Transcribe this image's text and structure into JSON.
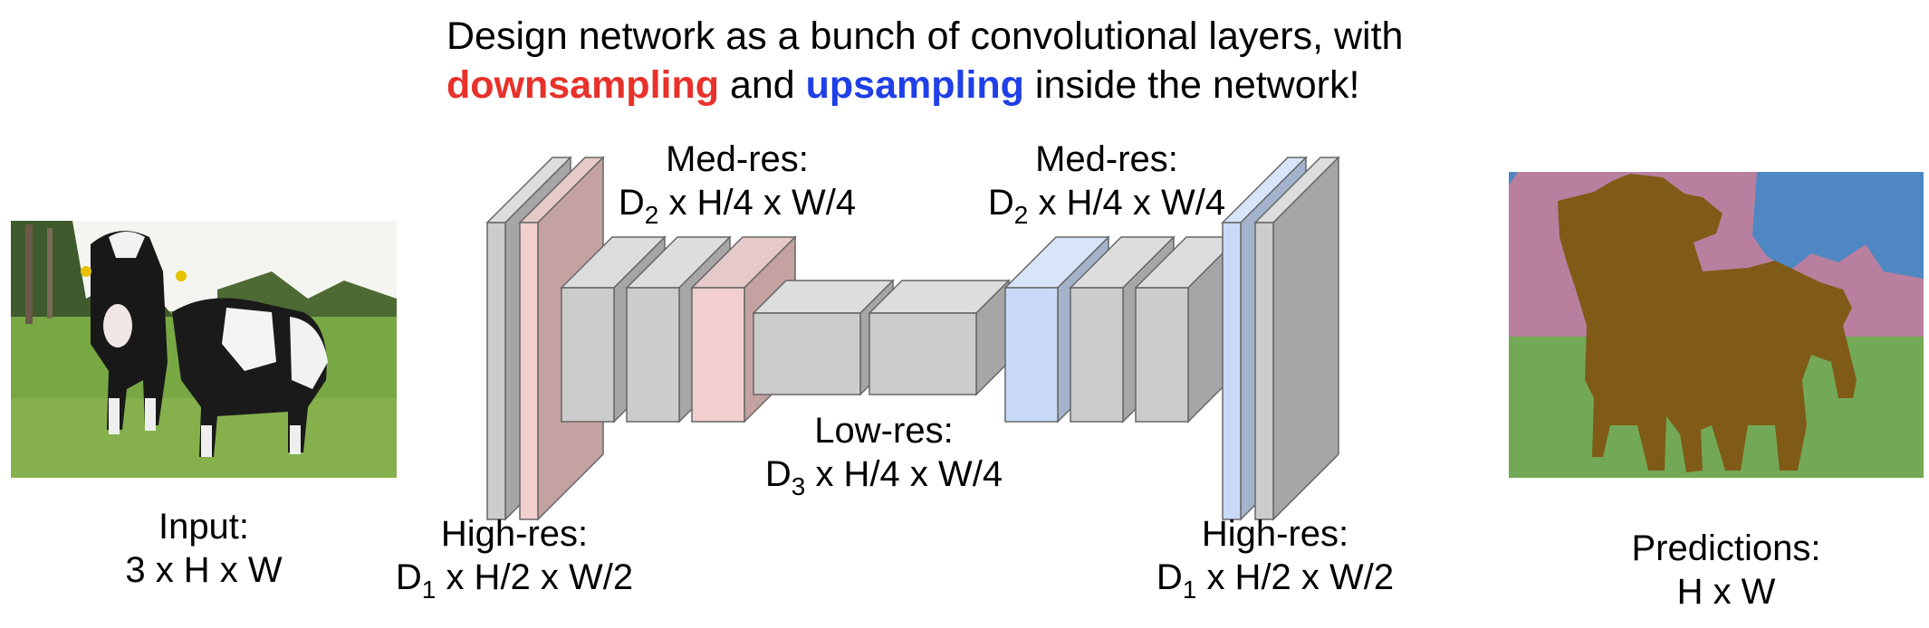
{
  "title": {
    "line1": "Design network as a bunch of convolutional layers, with",
    "down_word": "downsampling",
    "and_word": " and ",
    "up_word": "upsampling",
    "tail": " inside the network!"
  },
  "labels": {
    "input_title": "Input:",
    "input_dims": "3 x H x W",
    "highres_left_title": "High-res:",
    "highres_left_D": "D",
    "highres_left_sub": "1",
    "highres_left_rest": " x H/2 x W/2",
    "medres_left_title": "Med-res:",
    "medres_left_D": "D",
    "medres_left_sub": "2",
    "medres_left_rest": " x H/4 x W/4",
    "lowres_title": "Low-res:",
    "lowres_D": "D",
    "lowres_sub": "3",
    "lowres_rest": " x H/4 x W/4",
    "medres_right_title": "Med-res:",
    "medres_right_D": "D",
    "medres_right_sub": "2",
    "medres_right_rest": " x H/4 x W/4",
    "highres_right_title": "High-res:",
    "highres_right_D": "D",
    "highres_right_sub": "1",
    "highres_right_rest": " x H/2 x W/2",
    "pred_title": "Predictions:",
    "pred_dims": "H x W"
  },
  "colors": {
    "down_text": "#e8312a",
    "up_text": "#1f3fe8",
    "gray_face": "#cccccc",
    "gray_top": "#dddddd",
    "gray_side": "#a6a6a6",
    "pink_face": "#f2cfcf",
    "pink_side": "#c4a2a2",
    "blue_face": "#c9daf8",
    "blue_side": "#a4b3cc",
    "seg_pink": "#b97f9f",
    "seg_blue": "#4f87c2",
    "seg_green": "#73a956",
    "seg_brown": "#7f5b17"
  }
}
